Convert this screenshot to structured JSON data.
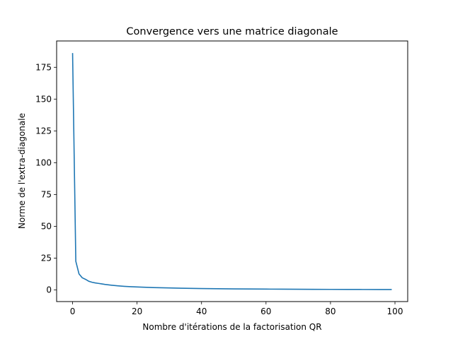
{
  "chart_data": {
    "type": "line",
    "title": "Convergence vers une matrice diagonale",
    "xlabel": "Nombre d'itérations de la factorisation QR",
    "ylabel": "Norme de l'extra-diagonale",
    "xlim": [
      -4.95,
      103.95
    ],
    "ylim": [
      -9.2,
      195.7
    ],
    "xticks": [
      0,
      20,
      40,
      60,
      80,
      100
    ],
    "yticks": [
      0,
      25,
      50,
      75,
      100,
      125,
      150,
      175
    ],
    "grid": false,
    "line_color": "#1f77b4",
    "series": [
      {
        "x": [
          0,
          1,
          2,
          3,
          4,
          5,
          6,
          7,
          8,
          9,
          10,
          12,
          14,
          16,
          18,
          20,
          25,
          30,
          35,
          40,
          45,
          50,
          55,
          60,
          65,
          70,
          75,
          80,
          85,
          90,
          95,
          99
        ],
        "y": [
          186.2,
          22.5,
          12.5,
          9.5,
          8.3,
          6.8,
          6.0,
          5.5,
          5.1,
          4.7,
          4.3,
          3.7,
          3.2,
          2.8,
          2.5,
          2.3,
          1.8,
          1.5,
          1.25,
          1.05,
          0.9,
          0.78,
          0.68,
          0.6,
          0.53,
          0.47,
          0.42,
          0.38,
          0.34,
          0.31,
          0.28,
          0.26
        ]
      }
    ]
  }
}
